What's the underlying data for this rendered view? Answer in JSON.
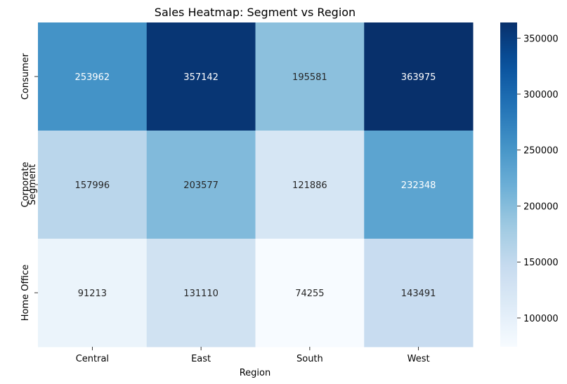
{
  "chart_data": {
    "type": "heatmap",
    "title": "Sales Heatmap: Segment vs Region",
    "xlabel": "Region",
    "ylabel": "Segment",
    "x_categories": [
      "Central",
      "East",
      "South",
      "West"
    ],
    "y_categories": [
      "Consumer",
      "Corporate",
      "Home Office"
    ],
    "values": [
      [
        253962,
        357142,
        195581,
        363975
      ],
      [
        157996,
        203577,
        121886,
        232348
      ],
      [
        91213,
        131110,
        74255,
        143491
      ]
    ],
    "colormap": "Blues",
    "vmin": 74255,
    "vmax": 363975,
    "colorbar_ticks": [
      {
        "value": 100000,
        "label": "100000"
      },
      {
        "value": 150000,
        "label": "150000"
      },
      {
        "value": 200000,
        "label": "200000"
      },
      {
        "value": 250000,
        "label": "250000"
      },
      {
        "value": 300000,
        "label": "300000"
      },
      {
        "value": 350000,
        "label": "350000"
      }
    ],
    "annotations": true,
    "grid": false
  }
}
